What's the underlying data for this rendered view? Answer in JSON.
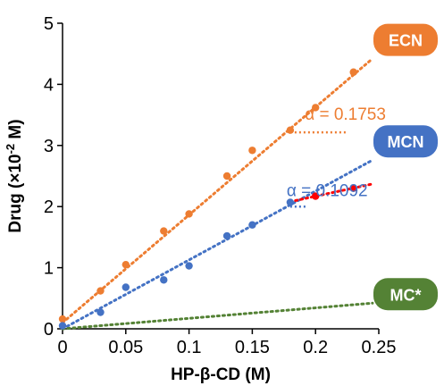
{
  "chart_data": {
    "type": "scatter",
    "xlabel": "HP-β-CD (M)",
    "ylabel_main": "Drug (×10",
    "ylabel_exp": "-2",
    "ylabel_tail": " M)",
    "xlim": [
      0,
      0.25
    ],
    "ylim": [
      0,
      5
    ],
    "x_ticks": [
      "0",
      "0.05",
      "0.1",
      "0.15",
      "0.2",
      "0.25"
    ],
    "y_ticks": [
      "0",
      "1",
      "2",
      "3",
      "4",
      "5"
    ],
    "grid": false,
    "series": [
      {
        "name": "ECN",
        "color": "#ED7D31",
        "x": [
          0,
          0.03,
          0.05,
          0.08,
          0.1,
          0.13,
          0.15,
          0.18,
          0.2,
          0.23
        ],
        "y": [
          0.16,
          0.62,
          1.05,
          1.6,
          1.88,
          2.5,
          2.92,
          3.25,
          3.62,
          4.2
        ],
        "trend": {
          "x": [
            0,
            0.245
          ],
          "y": [
            0.1,
            4.42
          ]
        },
        "alpha_label": "α = 0.1753",
        "alpha_value": 0.1753
      },
      {
        "name": "MCN",
        "color": "#4472C4",
        "x": [
          0,
          0.03,
          0.05,
          0.08,
          0.1,
          0.13,
          0.15,
          0.18
        ],
        "y": [
          0.05,
          0.27,
          0.68,
          0.8,
          1.03,
          1.52,
          1.7,
          2.07
        ],
        "trend": {
          "x": [
            0,
            0.245
          ],
          "y": [
            0.0,
            2.76
          ]
        },
        "alpha_label": "α = 0.1092",
        "alpha_value": 0.1092,
        "extra_points": {
          "color": "#FF0000",
          "x": [
            0.2,
            0.23
          ],
          "y": [
            2.17,
            2.3
          ],
          "trend": {
            "x": [
              0.18,
              0.245
            ],
            "y": [
              2.08,
              2.37
            ]
          }
        }
      },
      {
        "name": "MC*",
        "color": "#548235",
        "x": [],
        "y": [],
        "trend": {
          "x": [
            0,
            0.245
          ],
          "y": [
            0.0,
            0.42
          ]
        }
      }
    ]
  }
}
